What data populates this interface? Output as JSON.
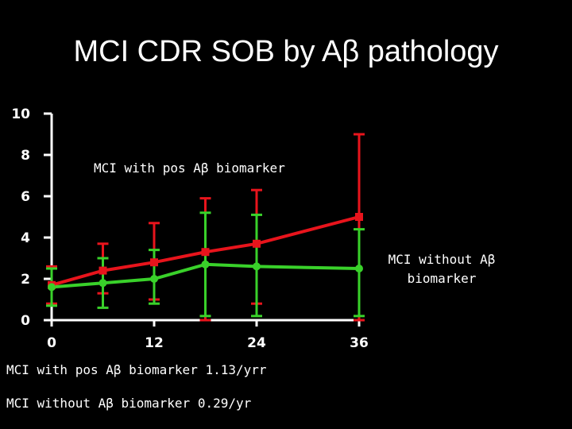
{
  "slide": {
    "title": "MCI CDR SOB  by Aβ pathology"
  },
  "chart_data": {
    "type": "line",
    "title": "MCI CDR SOB  by Aβ pathology",
    "xlabel": "",
    "ylabel": "",
    "x_ticks": [
      "0",
      "12",
      "24",
      "36"
    ],
    "y_ticks": [
      "0",
      "2",
      "4",
      "6",
      "8",
      "10"
    ],
    "xlim": [
      0,
      36
    ],
    "ylim": [
      0,
      10
    ],
    "grid": false,
    "series": [
      {
        "name": "MCI with pos Aβ biomarker",
        "color": "#e8141c",
        "marker": "square",
        "points": [
          {
            "x": 0,
            "y": 1.7,
            "lo": 0.8,
            "hi": 2.6
          },
          {
            "x": 6,
            "y": 2.4,
            "lo": 1.3,
            "hi": 3.7
          },
          {
            "x": 12,
            "y": 2.8,
            "lo": 1.0,
            "hi": 4.7
          },
          {
            "x": 18,
            "y": 3.3,
            "lo": 0.0,
            "hi": 5.9
          },
          {
            "x": 24,
            "y": 3.7,
            "lo": 0.8,
            "hi": 6.3
          },
          {
            "x": 36,
            "y": 5.0,
            "lo": 0.0,
            "hi": 9.0
          }
        ]
      },
      {
        "name": "MCI without Aβ biomarker",
        "color": "#39d12a",
        "marker": "circle",
        "points": [
          {
            "x": 0,
            "y": 1.6,
            "lo": 0.7,
            "hi": 2.5
          },
          {
            "x": 6,
            "y": 1.8,
            "lo": 0.6,
            "hi": 3.0
          },
          {
            "x": 12,
            "y": 2.0,
            "lo": 0.8,
            "hi": 3.4
          },
          {
            "x": 18,
            "y": 2.7,
            "lo": 0.2,
            "hi": 5.2
          },
          {
            "x": 24,
            "y": 2.6,
            "lo": 0.2,
            "hi": 5.1
          },
          {
            "x": 36,
            "y": 2.5,
            "lo": 0.2,
            "hi": 4.4
          }
        ]
      }
    ],
    "annotations": {
      "pos_label": "MCI with pos Aβ biomarker",
      "neg_label_line1": "MCI without Aβ",
      "neg_label_line2": "biomarker"
    }
  },
  "rates": {
    "pos": "MCI with pos Aβ biomarker 1.13/yrr",
    "neg": "MCI without Aβ biomarker 0.29/yr"
  }
}
